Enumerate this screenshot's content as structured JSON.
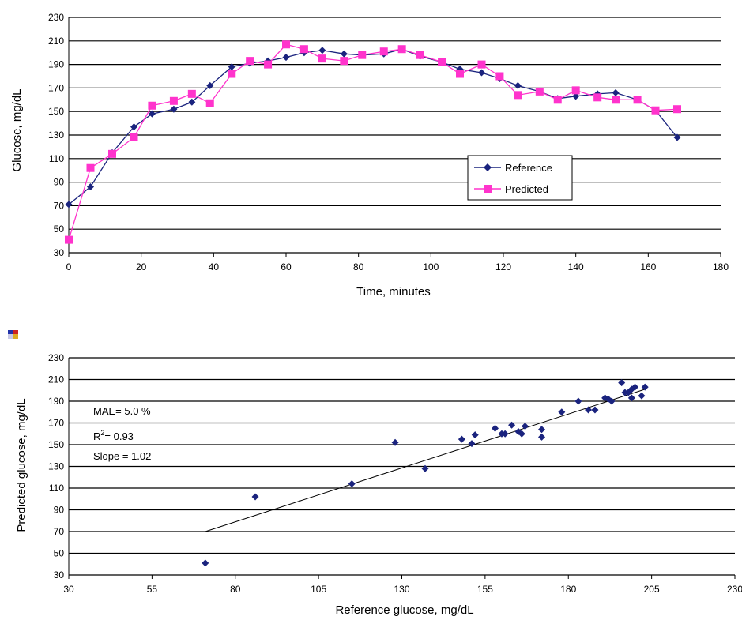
{
  "chart_data": [
    {
      "type": "line",
      "xlabel": "Time, minutes",
      "ylabel": "Glucose, mg/dL",
      "xlim": [
        0,
        180
      ],
      "ylim": [
        30,
        230
      ],
      "xticks": [
        "0",
        "20",
        "40",
        "60",
        "80",
        "100",
        "120",
        "140",
        "160",
        "180"
      ],
      "yticks": [
        "230",
        "210",
        "190",
        "170",
        "150",
        "130",
        "110",
        "90",
        "70",
        "50",
        "30"
      ],
      "grid": true,
      "legend_position": "center-right",
      "series": [
        {
          "name": "Reference",
          "color": "#1a237e",
          "marker": "diamond",
          "x": [
            0,
            6,
            12,
            18,
            23,
            29,
            34,
            39,
            45,
            50,
            55,
            60,
            65,
            70,
            76,
            81,
            87,
            92,
            97,
            103,
            108,
            114,
            119,
            124,
            130,
            135,
            140,
            146,
            151,
            157,
            162,
            168
          ],
          "y": [
            71,
            86,
            115,
            137,
            148,
            152,
            158,
            172,
            188,
            191,
            193,
            196,
            200,
            202,
            199,
            198,
            199,
            203,
            197,
            192,
            186,
            183,
            178,
            172,
            167,
            161,
            163,
            165,
            166,
            160,
            151,
            128
          ]
        },
        {
          "name": "Predicted",
          "color": "#ff33cc",
          "marker": "square",
          "x": [
            0,
            6,
            12,
            18,
            23,
            29,
            34,
            39,
            45,
            50,
            55,
            60,
            65,
            70,
            76,
            81,
            87,
            92,
            97,
            103,
            108,
            114,
            119,
            124,
            130,
            135,
            140,
            146,
            151,
            157,
            162,
            168
          ],
          "y": [
            41,
            102,
            114,
            128,
            155,
            159,
            165,
            157,
            182,
            193,
            190,
            207,
            203,
            195,
            193,
            198,
            201,
            203,
            198,
            192,
            182,
            190,
            180,
            164,
            167,
            160,
            168,
            162,
            160,
            160,
            151,
            152
          ]
        }
      ]
    },
    {
      "type": "scatter",
      "xlabel": "Reference glucose, mg/dL",
      "ylabel": "Predicted glucose, mg/dL",
      "xlim": [
        30,
        230
      ],
      "ylim": [
        30,
        230
      ],
      "xticks": [
        "30",
        "55",
        "80",
        "105",
        "130",
        "155",
        "180",
        "205",
        "230"
      ],
      "yticks": [
        "230",
        "210",
        "190",
        "170",
        "150",
        "130",
        "110",
        "90",
        "70",
        "50",
        "30"
      ],
      "grid": true,
      "color": "#1a237e",
      "annotations": [
        "MAE= 5.0 %",
        "R",
        "2",
        "= 0.93",
        "Slope = 1.02"
      ],
      "points": {
        "x": [
          71,
          86,
          115,
          137,
          148,
          152,
          158,
          172,
          188,
          191,
          193,
          196,
          200,
          202,
          199,
          198,
          199,
          203,
          197,
          192,
          186,
          183,
          178,
          172,
          167,
          161,
          163,
          165,
          166,
          160,
          151,
          128
        ],
        "y": [
          41,
          102,
          114,
          128,
          155,
          159,
          165,
          157,
          182,
          193,
          190,
          207,
          203,
          195,
          193,
          198,
          201,
          203,
          198,
          192,
          182,
          190,
          180,
          164,
          167,
          160,
          168,
          162,
          160,
          160,
          151,
          152
        ]
      },
      "trendline": {
        "x": [
          71,
          203
        ],
        "y": [
          70,
          201
        ]
      }
    }
  ]
}
